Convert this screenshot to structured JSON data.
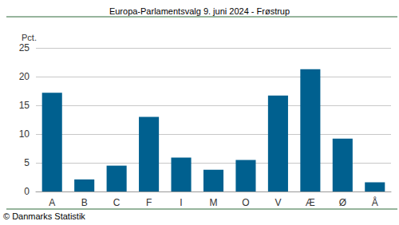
{
  "chart_data": {
    "type": "bar",
    "title": "Europa-Parlamentsvalg 9. juni 2024 - Frøstrup",
    "y_label": "Pct.",
    "source": "© Danmarks Statistik",
    "categories": [
      "A",
      "B",
      "C",
      "F",
      "I",
      "M",
      "O",
      "V",
      "Æ",
      "Ø",
      "Å"
    ],
    "values": [
      17.2,
      2.1,
      4.5,
      13.0,
      5.9,
      3.8,
      5.5,
      16.7,
      21.3,
      9.2,
      1.6
    ],
    "color": "#00608f",
    "ylim": [
      0,
      25
    ],
    "yticks": [
      0,
      5,
      10,
      15,
      20,
      25
    ],
    "grid": true
  }
}
